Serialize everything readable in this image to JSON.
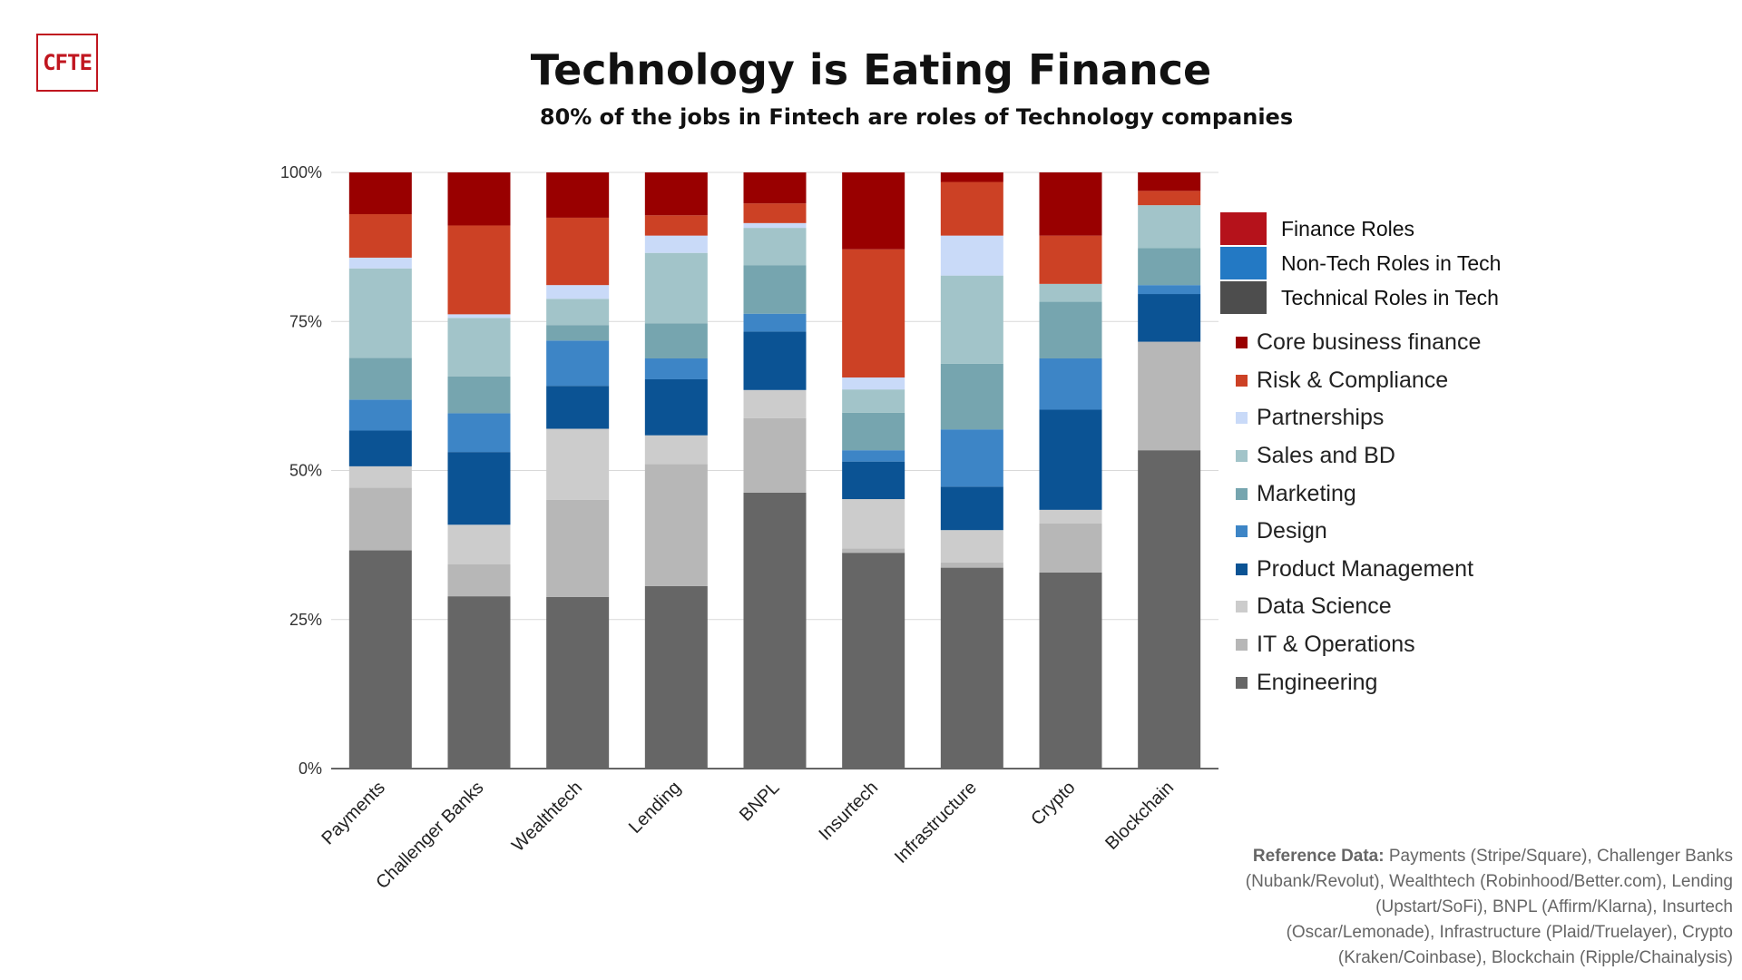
{
  "logo": "CFTE",
  "colors": {
    "Core business finance": "#990000",
    "Risk & Compliance": "#cc4125",
    "Partnerships": "#c9daf8",
    "Sales and BD": "#a2c4c9",
    "Marketing": "#76a5af",
    "Design": "#3d85c6",
    "Product Management": "#0b5394",
    "Data Science": "#cccccc",
    "IT & Operations": "#b7b7b7",
    "Engineering": "#666666"
  },
  "group_legend": [
    {
      "label": "Finance Roles",
      "color": "#b5121b"
    },
    {
      "label": "Non-Tech Roles in Tech",
      "color": "#2379c4"
    },
    {
      "label": "Technical Roles in Tech",
      "color": "#4d4d4d"
    }
  ],
  "reference": {
    "label": "Reference Data:",
    "text": "Payments (Stripe/Square), Challenger Banks (Nubank/Revolut), Wealthtech (Robinhood/Better.com), Lending (Upstart/SoFi), BNPL (Affirm/Klarna), Insurtech (Oscar/Lemonade), Infrastructure (Plaid/Truelayer), Crypto (Kraken/Coinbase), Blockchain (Ripple/Chainalysis)"
  },
  "chart_data": {
    "type": "bar",
    "stacked": "percent",
    "title": "Technology is Eating Finance",
    "subtitle": "80% of the jobs in Fintech are roles of Technology companies",
    "ylim": [
      0,
      100
    ],
    "yticks": [
      "0%",
      "25%",
      "50%",
      "75%",
      "100%"
    ],
    "grid": true,
    "legend_position": "right",
    "categories": [
      "Payments",
      "Challenger Banks",
      "Wealthtech",
      "Lending",
      "BNPL",
      "Insurtech",
      "Infrastructure",
      "Crypto",
      "Blockchain"
    ],
    "series": [
      {
        "name": "Engineering",
        "values": [
          36.6,
          28.9,
          28.8,
          30.6,
          46.3,
          36.2,
          33.7,
          32.9,
          53.4
        ]
      },
      {
        "name": "IT & Operations",
        "values": [
          10.5,
          5.4,
          16.3,
          20.5,
          12.5,
          0.7,
          0.9,
          8.2,
          18.2
        ]
      },
      {
        "name": "Data Science",
        "values": [
          3.6,
          6.6,
          11.9,
          4.8,
          4.7,
          8.3,
          5.4,
          2.3,
          0
        ]
      },
      {
        "name": "Product Management",
        "values": [
          6.0,
          12.2,
          7.2,
          9.4,
          9.8,
          6.3,
          7.3,
          16.8,
          8.0
        ]
      },
      {
        "name": "Design",
        "values": [
          5.2,
          6.5,
          7.6,
          3.5,
          3.0,
          1.9,
          9.6,
          8.6,
          1.5
        ]
      },
      {
        "name": "Marketing",
        "values": [
          7.0,
          6.2,
          2.6,
          5.9,
          8.1,
          6.3,
          11.0,
          9.5,
          6.2
        ]
      },
      {
        "name": "Sales and BD",
        "values": [
          15.0,
          9.8,
          4.4,
          11.8,
          6.3,
          3.9,
          14.8,
          3.0,
          7.2
        ]
      },
      {
        "name": "Partnerships",
        "values": [
          1.8,
          0.6,
          2.3,
          2.9,
          0.8,
          2.0,
          6.7,
          0,
          0
        ]
      },
      {
        "name": "Risk & Compliance",
        "values": [
          7.3,
          14.9,
          11.3,
          3.4,
          3.3,
          21.5,
          9.0,
          8.1,
          2.4
        ]
      },
      {
        "name": "Core business finance",
        "values": [
          7.0,
          8.9,
          7.6,
          7.2,
          5.2,
          12.9,
          1.6,
          10.6,
          3.1
        ]
      }
    ]
  }
}
